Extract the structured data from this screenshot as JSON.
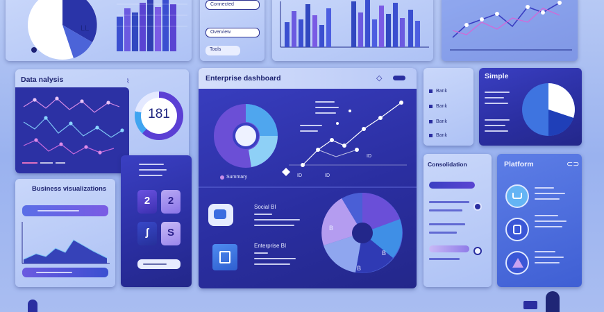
{
  "top_center_card": {
    "fields": [
      "Connected",
      "Overview",
      "Tools"
    ]
  },
  "data_panel": {
    "title": "Data nalysis"
  },
  "gauge": {
    "value": "181"
  },
  "enterprise_panel": {
    "title": "Enterprise dashboard",
    "legend": "Summary",
    "axis_labels": [
      "ID",
      "ID",
      "ID"
    ],
    "item_1": {
      "title": "Social BI"
    },
    "item_2": {
      "title": "Enterprise BI"
    },
    "pie_labels": [
      "B",
      "B",
      "B"
    ]
  },
  "stack_panel": {
    "labels": [
      "Bank",
      "Bank",
      "Bank",
      "Bank"
    ]
  },
  "simple_panel": {
    "title": "Simple"
  },
  "business_panel": {
    "title": "Business visualizations"
  },
  "tiles": {
    "a": "2",
    "b": "2",
    "c": "ʃ",
    "d": "S"
  },
  "consolidation_panel": {
    "title": "Consolidation"
  },
  "platform_panel": {
    "title": "Platform"
  },
  "colors": {
    "accent_dark": "#2a2ea0",
    "accent_violet": "#7b4fd8",
    "accent_cyan": "#5fb6f0",
    "panel_light": "#c9d7fa"
  }
}
